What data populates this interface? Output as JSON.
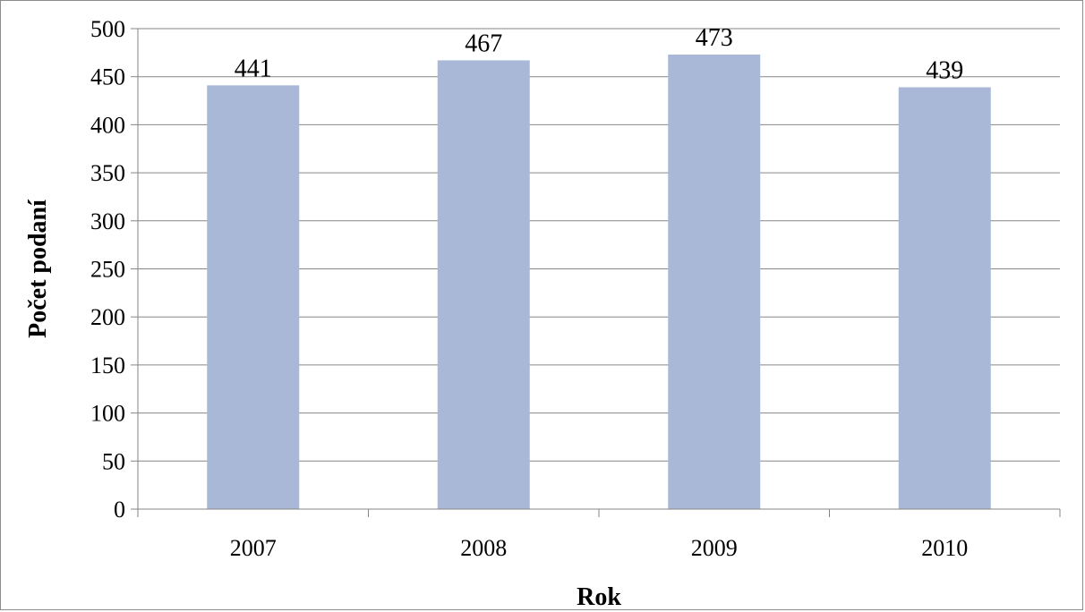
{
  "chart_data": {
    "type": "bar",
    "categories": [
      "2007",
      "2008",
      "2009",
      "2010"
    ],
    "values": [
      441,
      467,
      473,
      439
    ],
    "data_labels": [
      "441",
      "467",
      "473",
      "439"
    ],
    "title": "",
    "xlabel": "Rok",
    "ylabel": "Počet podaní",
    "ylim": [
      0,
      500
    ],
    "y_ticks": [
      0,
      50,
      100,
      150,
      200,
      250,
      300,
      350,
      400,
      450,
      500
    ],
    "grid": true,
    "legend": "none",
    "colors": {
      "bar": "#a9b8d6",
      "grid": "#868686",
      "axis": "#868686",
      "frame": "#8c8c8c"
    }
  }
}
